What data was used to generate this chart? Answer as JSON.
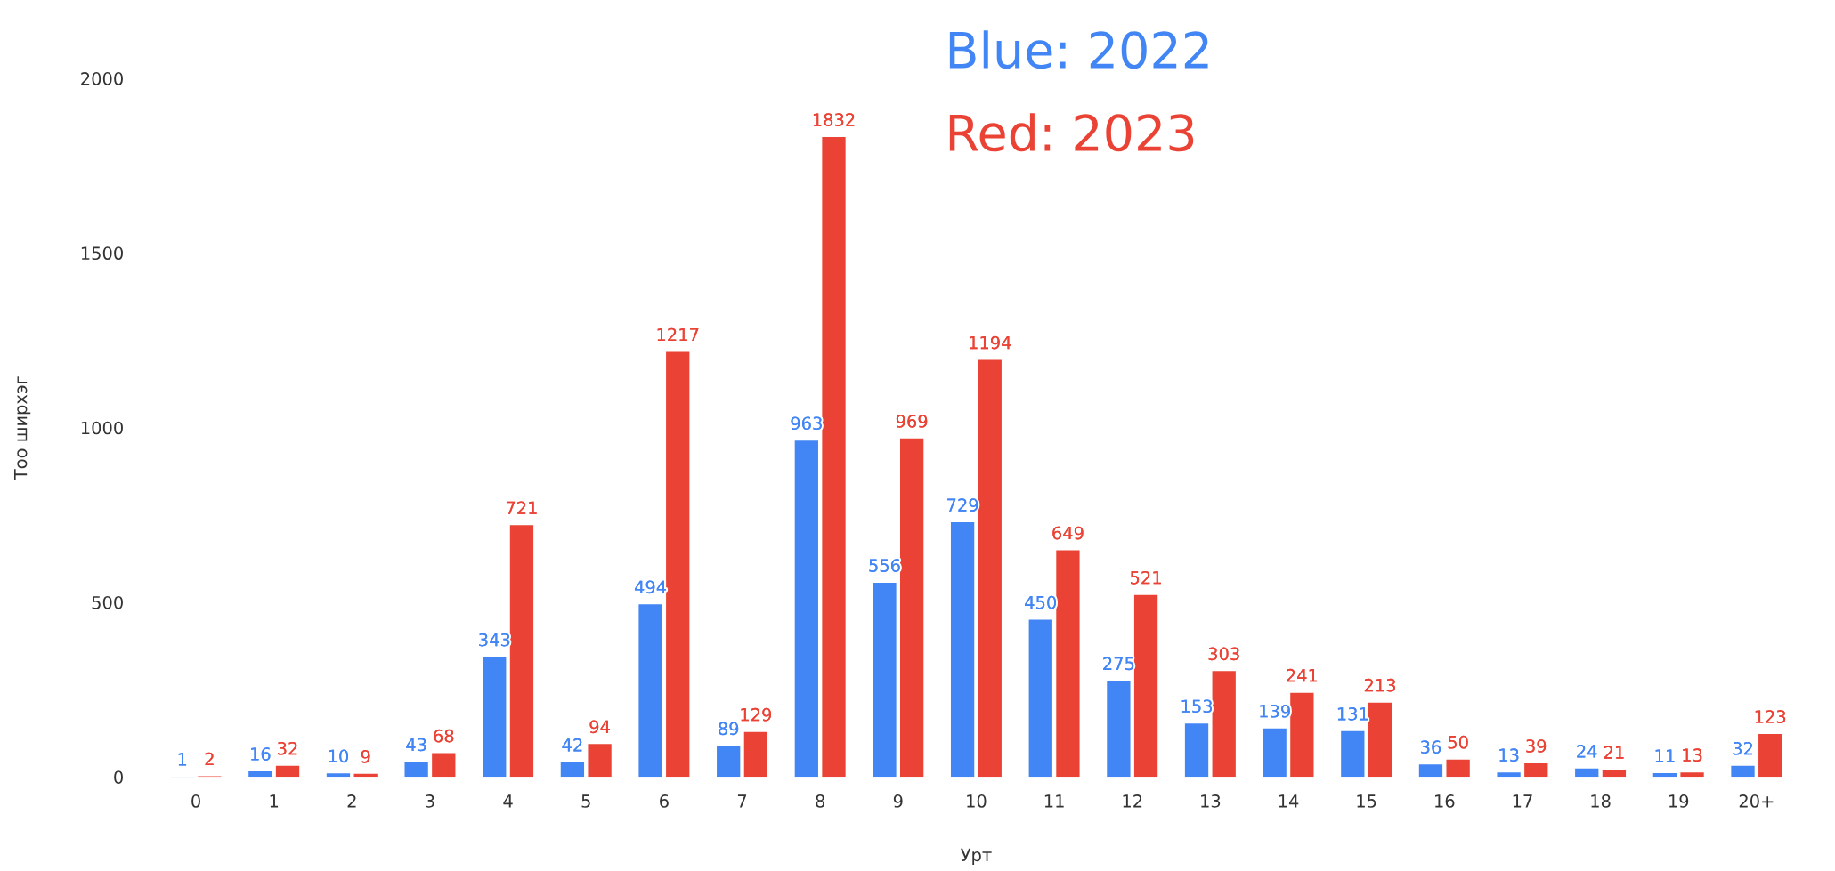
{
  "chart_data": {
    "type": "bar",
    "xlabel": "Урт",
    "ylabel": "Тоо ширхэг",
    "categories": [
      "0",
      "1",
      "2",
      "3",
      "4",
      "5",
      "6",
      "7",
      "8",
      "9",
      "10",
      "11",
      "12",
      "13",
      "14",
      "15",
      "16",
      "17",
      "18",
      "19",
      "20+"
    ],
    "series": [
      {
        "color": "#4285f4",
        "values": [
          1,
          16,
          10,
          43,
          343,
          42,
          494,
          89,
          963,
          556,
          729,
          450,
          275,
          153,
          139,
          131,
          36,
          13,
          24,
          11,
          32
        ]
      },
      {
        "color": "#ea4335",
        "values": [
          2,
          32,
          9,
          68,
          721,
          94,
          1217,
          129,
          1832,
          969,
          1194,
          649,
          521,
          303,
          241,
          213,
          50,
          39,
          21,
          13,
          123
        ]
      }
    ],
    "ylim": [
      0,
      2000
    ],
    "yticks": [
      0,
      500,
      1000,
      1500,
      2000
    ],
    "grid": false,
    "data_labels": true,
    "annotations": [
      "Blue: 2022",
      "Red: 2023"
    ]
  }
}
